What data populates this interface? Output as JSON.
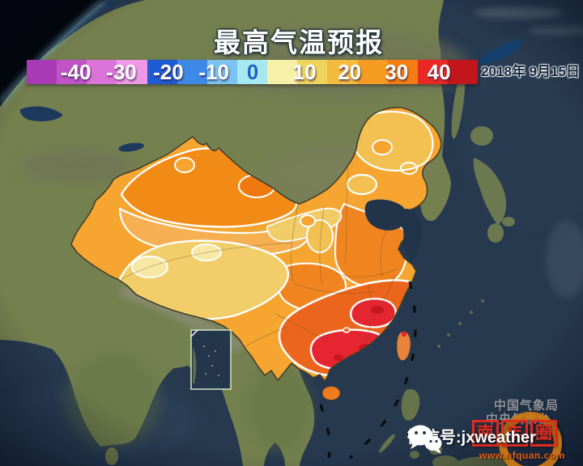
{
  "title": "最高气温预报",
  "date": "2018年 9月15日",
  "legend": {
    "labels": [
      "-40",
      "-30",
      "-20",
      "-10",
      "0",
      "10",
      "20",
      "30",
      "40"
    ],
    "positions_pct": [
      10.9,
      21.0,
      31.4,
      41.5,
      50.1,
      61.6,
      71.6,
      82.0,
      91.4
    ],
    "zero_color": "#1565c8",
    "segment_colors": [
      "#a93ab6",
      "#bf54c6",
      "#da74d8",
      "#f098e8",
      "#1e5ad2",
      "#3e88e6",
      "#7ac2f0",
      "#a6e8f0",
      "#f7f0a8",
      "#eed35c",
      "#f5ba40",
      "#f69b22",
      "#f67d12",
      "#ea2824",
      "#c0161c"
    ]
  },
  "watermarks": {
    "agency_top": "中国气象局",
    "agency_bottom": "中央气象台",
    "wechat_label": "微信号:jxweather",
    "logo_chars": [
      "南",
      "丰",
      "圈"
    ],
    "logo_url": "www.nfquan.com"
  },
  "map": {
    "colors": {
      "sea": "#26394f",
      "land": "#75804f",
      "china_base": "#f5a530",
      "deep_orange": "#f28a16",
      "darker_orange": "#ef790e",
      "plain_orange": "#f08520",
      "amber": "#f3c152",
      "corridor": "#f6b052",
      "yellow": "#f1ce6a",
      "pale_yellow": "#f8e8a4",
      "burnt_orange": "#eb661c",
      "red": "#e52630",
      "dark_red": "#c9161e",
      "taiwan": "#e8833c",
      "hainan": "#ee7c1e"
    }
  }
}
